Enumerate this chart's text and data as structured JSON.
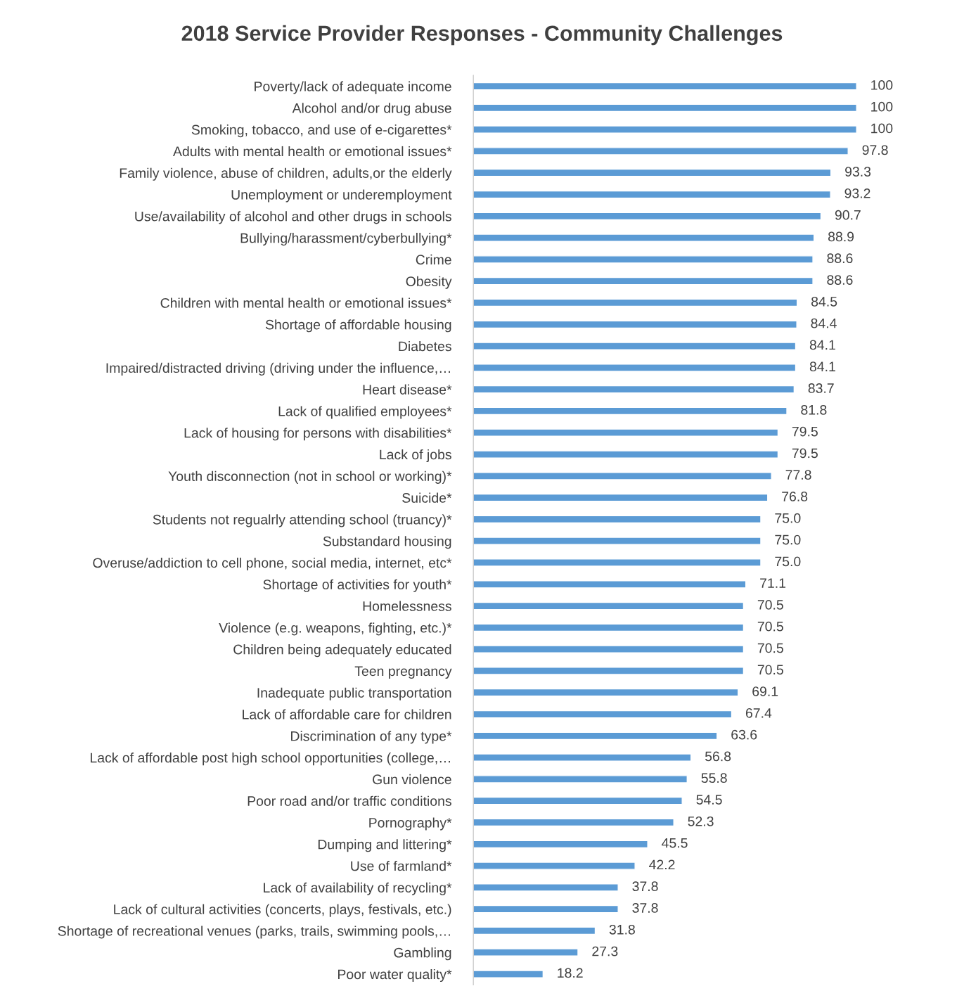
{
  "chart_data": {
    "type": "bar",
    "orientation": "horizontal",
    "title": "2018 Service Provider Responses - Community Challenges",
    "categories": [
      "Poverty/lack of adequate income",
      "Alcohol and/or drug abuse",
      "Smoking, tobacco, and use of e-cigarettes*",
      "Adults with mental health or emotional issues*",
      "Family violence, abuse of children, adults,or the elderly",
      "Unemployment or underemployment",
      "Use/availability of alcohol and other drugs in schools",
      "Bullying/harassment/cyberbullying*",
      "Crime",
      "Obesity",
      "Children with mental health or emotional issues*",
      "Shortage of affordable housing",
      "Diabetes",
      "Impaired/distracted driving (driving under the influence,…",
      "Heart disease*",
      "Lack of qualified employees*",
      "Lack of housing for persons with disabilities*",
      "Lack of jobs",
      "Youth disconnection (not in school or working)*",
      "Suicide*",
      "Students not regualrly attending school (truancy)*",
      "Substandard housing",
      "Overuse/addiction to cell phone, social media, internet, etc*",
      "Shortage of activities for youth*",
      "Homelessness",
      "Violence (e.g. weapons, fighting, etc.)*",
      "Children being adequately educated",
      "Teen pregnancy",
      "Inadequate public transportation",
      "Lack of affordable care for children",
      "Discrimination of any type*",
      "Lack of affordable post high school opportunities (college,…",
      "Gun violence",
      "Poor road and/or traffic conditions",
      "Pornography*",
      "Dumping and littering*",
      "Use of farmland*",
      "Lack of availability of recycling*",
      "Lack of cultural activities (concerts, plays, festivals, etc.)",
      "Shortage of recreational venues (parks, trails, swimming pools,…",
      "Gambling",
      "Poor water quality*"
    ],
    "values": [
      100,
      100,
      100,
      97.8,
      93.3,
      93.2,
      90.7,
      88.9,
      88.6,
      88.6,
      84.5,
      84.4,
      84.1,
      84.1,
      83.7,
      81.8,
      79.5,
      79.5,
      77.8,
      76.8,
      75.0,
      75.0,
      75.0,
      71.1,
      70.5,
      70.5,
      70.5,
      70.5,
      69.1,
      67.4,
      63.6,
      56.8,
      55.8,
      54.5,
      52.3,
      45.5,
      42.2,
      37.8,
      37.8,
      31.8,
      27.3,
      18.2
    ],
    "value_labels": [
      "100",
      "100",
      "100",
      "97.8",
      "93.3",
      "93.2",
      "90.7",
      "88.9",
      "88.6",
      "88.6",
      "84.5",
      "84.4",
      "84.1",
      "84.1",
      "83.7",
      "81.8",
      "79.5",
      "79.5",
      "77.8",
      "76.8",
      "75.0",
      "75.0",
      "75.0",
      "71.1",
      "70.5",
      "70.5",
      "70.5",
      "70.5",
      "69.1",
      "67.4",
      "63.6",
      "56.8",
      "55.8",
      "54.5",
      "52.3",
      "45.5",
      "42.2",
      "37.8",
      "37.8",
      "31.8",
      "27.3",
      "18.2"
    ],
    "color": "#5b9bd5",
    "grid": false,
    "legend": false,
    "tick_labels": "y"
  }
}
